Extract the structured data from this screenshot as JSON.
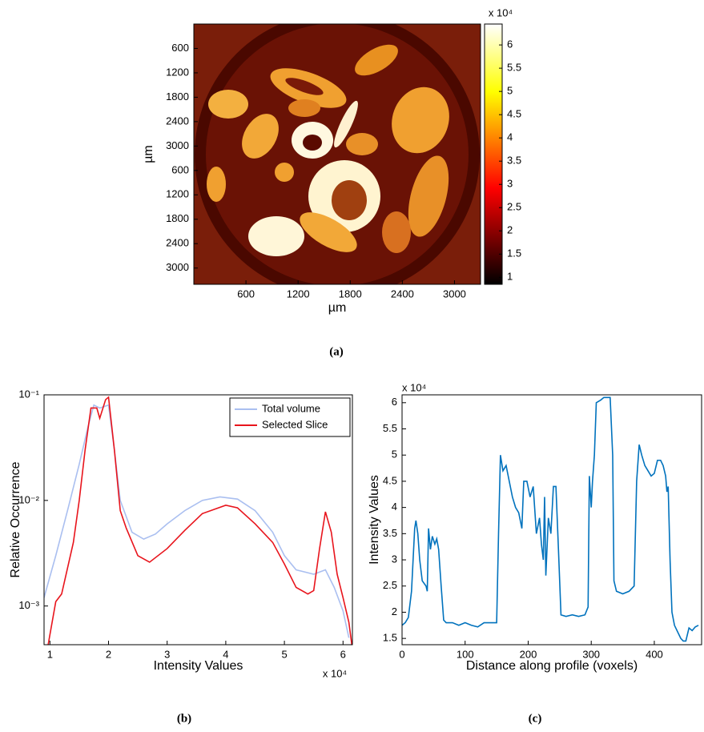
{
  "chart_data": [
    {
      "type": "image",
      "xlabel": "µm",
      "ylabel": "µm",
      "xlim": [
        0,
        3300
      ],
      "ylim": [
        0,
        6400
      ],
      "y_reversed": true,
      "xticks": [
        600,
        1200,
        1800,
        2400,
        3000
      ],
      "yticks": [
        600,
        1200,
        1800,
        2400,
        3000,
        {
          "value": 3600,
          "label": "600"
        },
        {
          "value": 4200,
          "label": "1200"
        },
        {
          "value": 4800,
          "label": "1800"
        },
        {
          "value": 5400,
          "label": "2400"
        },
        {
          "value": 6000,
          "label": "3000"
        }
      ],
      "colorbar": {
        "colormap": "hot",
        "clim": [
          0.85,
          6.45
        ],
        "ticks": [
          1,
          1.5,
          2,
          2.5,
          3,
          3.5,
          4,
          4.5,
          5,
          5.5,
          6
        ],
        "multiplier": "x 10⁴"
      }
    },
    {
      "type": "line",
      "xlabel": "Intensity Values",
      "ylabel": "Relative Occurrence",
      "x_multiplier": "x 10⁴",
      "yscale": "log",
      "legend": "upper right",
      "xlim": [
        0.9,
        6.16
      ],
      "ylim": [
        0.00043,
        0.1
      ],
      "xticks": [
        1,
        2,
        3,
        4,
        5,
        6
      ],
      "yticks": [
        {
          "value": 0.1,
          "label": "10⁻¹"
        },
        {
          "value": 0.01,
          "label": "10⁻²"
        },
        {
          "value": 0.001,
          "label": "10⁻³"
        }
      ],
      "series": [
        {
          "name": "Total volume",
          "color": "#aabff0",
          "x": [
            0.9,
            1.1,
            1.3,
            1.5,
            1.65,
            1.75,
            1.85,
            2.0,
            2.1,
            2.2,
            2.4,
            2.6,
            2.8,
            3.0,
            3.3,
            3.6,
            3.9,
            4.2,
            4.5,
            4.8,
            5.0,
            5.2,
            5.5,
            5.7,
            5.85,
            6.0,
            6.1
          ],
          "values": [
            0.0012,
            0.003,
            0.008,
            0.022,
            0.05,
            0.08,
            0.075,
            0.08,
            0.03,
            0.01,
            0.005,
            0.0043,
            0.0048,
            0.006,
            0.008,
            0.01,
            0.0108,
            0.0103,
            0.008,
            0.005,
            0.003,
            0.0022,
            0.002,
            0.0022,
            0.0015,
            0.0009,
            0.0005
          ]
        },
        {
          "name": "Selected Slice",
          "color": "#e8141c",
          "x": [
            0.97,
            1.1,
            1.2,
            1.4,
            1.5,
            1.6,
            1.7,
            1.8,
            1.85,
            1.95,
            2.0,
            2.1,
            2.2,
            2.3,
            2.5,
            2.7,
            3.0,
            3.3,
            3.6,
            4.0,
            4.2,
            4.5,
            4.8,
            5.0,
            5.2,
            5.4,
            5.5,
            5.6,
            5.7,
            5.8,
            5.9,
            6.0,
            6.1,
            6.15
          ],
          "values": [
            0.00043,
            0.0011,
            0.0013,
            0.004,
            0.01,
            0.03,
            0.075,
            0.075,
            0.06,
            0.09,
            0.095,
            0.03,
            0.008,
            0.0055,
            0.003,
            0.0026,
            0.0035,
            0.0052,
            0.0075,
            0.009,
            0.0085,
            0.006,
            0.004,
            0.0025,
            0.0015,
            0.0013,
            0.0014,
            0.0035,
            0.0078,
            0.005,
            0.002,
            0.0012,
            0.0007,
            0.00043
          ]
        }
      ]
    },
    {
      "type": "line",
      "xlabel": "Distance along profile (voxels)",
      "ylabel": "Intensity Values",
      "y_multiplier": "x 10⁴",
      "xlim": [
        0,
        475
      ],
      "ylim": [
        1.38,
        6.15
      ],
      "xticks": [
        0,
        100,
        200,
        300,
        400
      ],
      "yticks": [
        1.5,
        2,
        2.5,
        3,
        3.5,
        4,
        4.5,
        5,
        5.5,
        6
      ],
      "series": [
        {
          "color": "#0072bd",
          "x": [
            0,
            5,
            10,
            15,
            20,
            22,
            25,
            28,
            32,
            38,
            40,
            42,
            45,
            48,
            52,
            55,
            58,
            62,
            66,
            70,
            80,
            90,
            100,
            110,
            120,
            130,
            140,
            150,
            153,
            156,
            160,
            165,
            170,
            175,
            180,
            185,
            190,
            193,
            198,
            203,
            208,
            213,
            218,
            221,
            224,
            226,
            228,
            232,
            236,
            240,
            244,
            248,
            252,
            260,
            270,
            280,
            290,
            295,
            297,
            300,
            302,
            305,
            308,
            315,
            320,
            330,
            334,
            336,
            340,
            350,
            360,
            368,
            372,
            376,
            380,
            385,
            390,
            395,
            400,
            405,
            410,
            414,
            418,
            420,
            422,
            425,
            428,
            432,
            438,
            442,
            446,
            450,
            455,
            460,
            465,
            470
          ],
          "values": [
            1.75,
            1.8,
            1.9,
            2.4,
            3.6,
            3.75,
            3.5,
            3.0,
            2.6,
            2.5,
            2.4,
            3.6,
            3.2,
            3.45,
            3.3,
            3.4,
            3.2,
            2.5,
            1.85,
            1.8,
            1.8,
            1.75,
            1.8,
            1.75,
            1.72,
            1.8,
            1.8,
            1.8,
            3.5,
            5.0,
            4.7,
            4.8,
            4.5,
            4.2,
            4.0,
            3.9,
            3.6,
            4.5,
            4.5,
            4.2,
            4.4,
            3.5,
            3.8,
            3.3,
            3.0,
            4.2,
            2.7,
            3.8,
            3.5,
            4.4,
            4.4,
            3.2,
            1.95,
            1.92,
            1.95,
            1.92,
            1.95,
            2.1,
            4.6,
            4.0,
            4.5,
            5.0,
            6.0,
            6.05,
            6.1,
            6.1,
            5.0,
            2.6,
            2.4,
            2.35,
            2.4,
            2.5,
            4.5,
            5.2,
            5.0,
            4.8,
            4.7,
            4.6,
            4.65,
            4.9,
            4.9,
            4.8,
            4.6,
            4.3,
            4.4,
            3.0,
            2.0,
            1.75,
            1.6,
            1.5,
            1.45,
            1.45,
            1.7,
            1.65,
            1.72,
            1.75
          ]
        }
      ]
    }
  ],
  "captions": [
    "(a)",
    "(b)",
    "(c)"
  ]
}
